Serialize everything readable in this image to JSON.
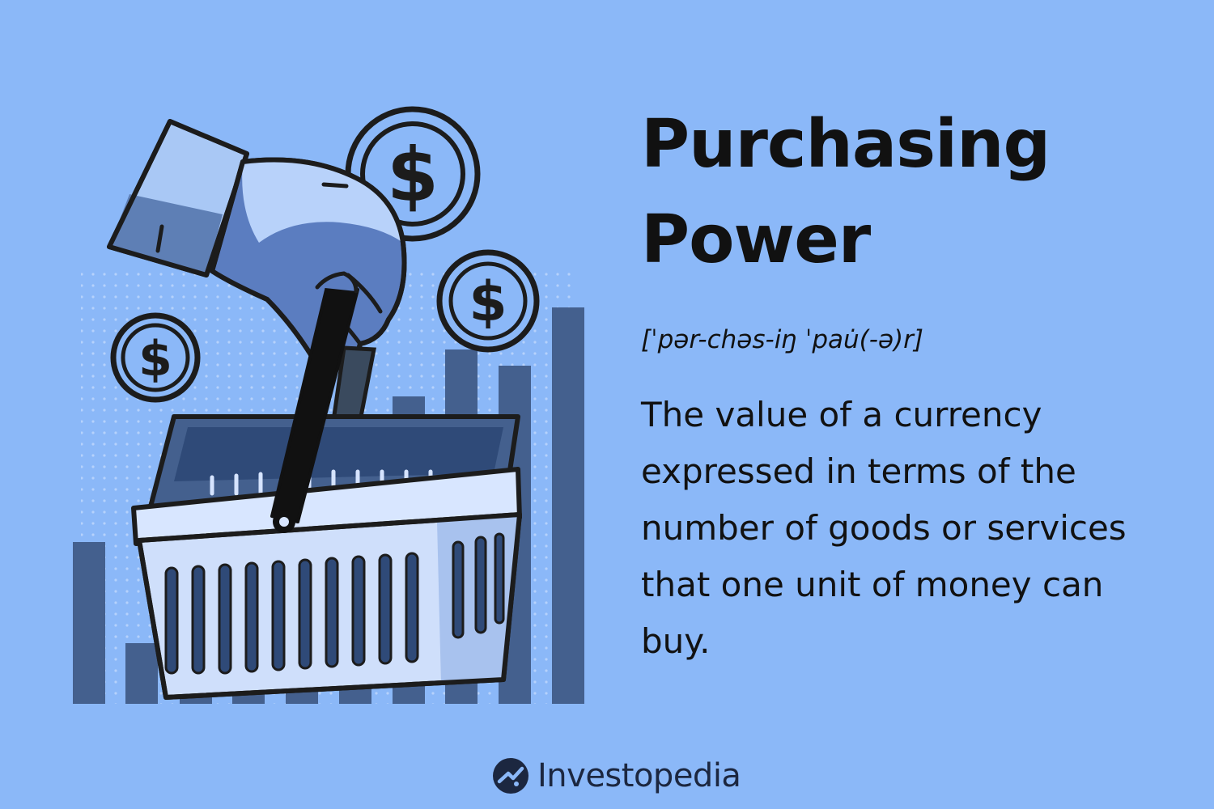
{
  "heading": {
    "title": "Purchasing Power",
    "pronunciation": "[ˈpər-chəs-iŋ ˈpau̇(-ə)r]"
  },
  "definition": {
    "text": "The value of a currency expressed in terms of the number of goods or services that one unit of money can buy."
  },
  "brand": {
    "name": "Investopedia"
  },
  "illustration": {
    "coin_symbol": "$",
    "icons": [
      "hand-icon",
      "shopping-basket-icon",
      "dollar-coin-icon",
      "bar-chart-icon"
    ]
  },
  "colors": {
    "background": "#8bb8f8",
    "bars": "#44608e",
    "text": "#111111",
    "brand_text": "#1c2740"
  }
}
